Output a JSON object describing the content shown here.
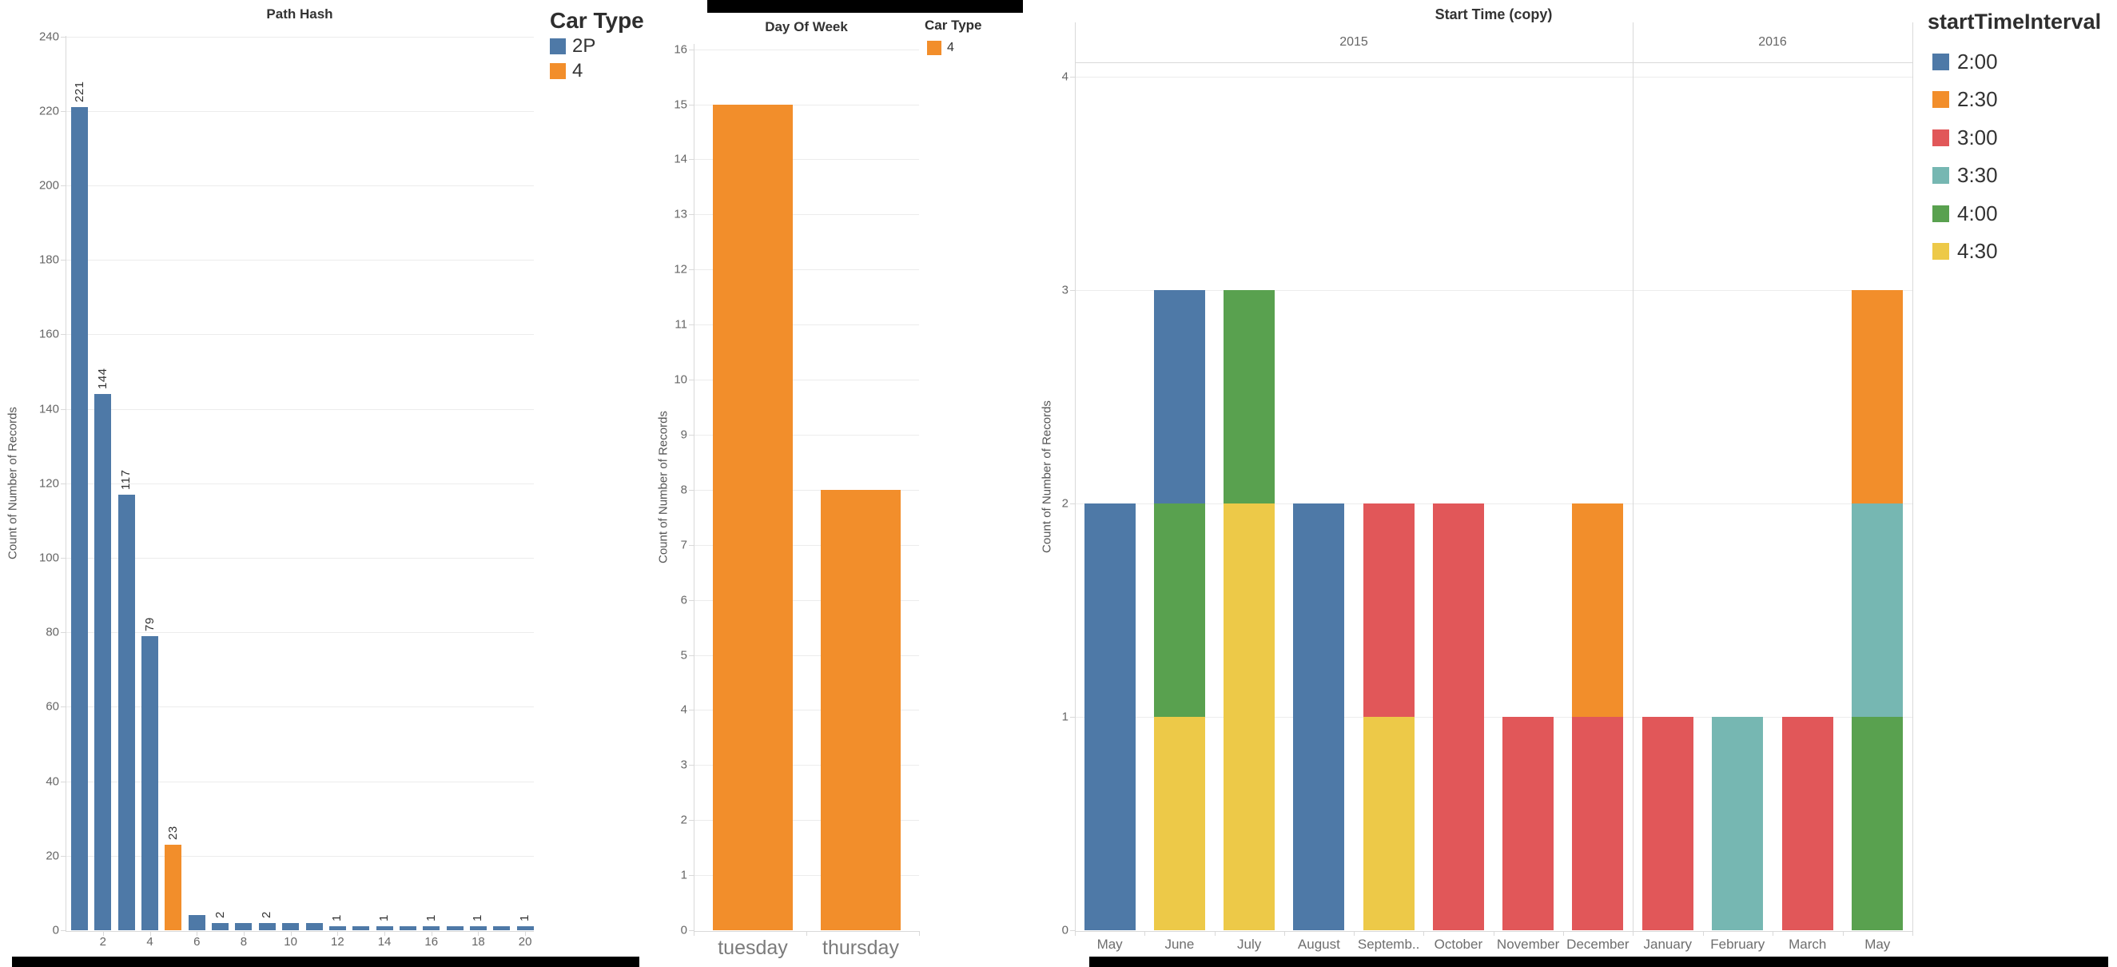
{
  "colors": {
    "blue": "#4e79a7",
    "orange": "#f28e2b",
    "red": "#e15759",
    "teal": "#76b7b2",
    "green": "#59a14f",
    "yellow": "#edc948"
  },
  "chart_data": [
    {
      "id": "path-hash",
      "type": "bar",
      "title": "Path Hash",
      "ylabel": "Count of Number of Records",
      "ylim": [
        0,
        240
      ],
      "yticks": [
        0,
        20,
        40,
        60,
        80,
        100,
        120,
        140,
        160,
        180,
        200,
        220,
        240
      ],
      "x": [
        1,
        2,
        3,
        4,
        5,
        6,
        7,
        8,
        9,
        10,
        11,
        12,
        13,
        14,
        15,
        16,
        17,
        18,
        19,
        20
      ],
      "xticks_shown": [
        2,
        4,
        6,
        8,
        10,
        12,
        14,
        16,
        18,
        20
      ],
      "values": [
        221,
        144,
        117,
        79,
        23,
        4,
        2,
        2,
        2,
        2,
        2,
        1,
        1,
        1,
        1,
        1,
        1,
        1,
        1,
        1
      ],
      "bar_colors": [
        "blue",
        "blue",
        "blue",
        "blue",
        "orange",
        "blue",
        "blue",
        "blue",
        "blue",
        "blue",
        "blue",
        "blue",
        "blue",
        "blue",
        "blue",
        "blue",
        "blue",
        "blue",
        "blue",
        "blue"
      ],
      "bar_labels": [
        "221",
        "144",
        "117",
        "79",
        "23",
        "",
        "2",
        "",
        "2",
        "",
        "",
        "1",
        "",
        "1",
        "",
        "1",
        "",
        "1",
        "",
        "1"
      ],
      "grid": true,
      "legend": {
        "title": "Car Type",
        "items": [
          {
            "label": "2P",
            "color": "blue"
          },
          {
            "label": "4",
            "color": "orange"
          }
        ],
        "position": "right-top"
      }
    },
    {
      "id": "day-of-week",
      "type": "bar",
      "title": "Day Of Week",
      "ylabel": "Count of Number of Records",
      "ylim": [
        0,
        16
      ],
      "yticks": [
        0,
        1,
        2,
        3,
        4,
        5,
        6,
        7,
        8,
        9,
        10,
        11,
        12,
        13,
        14,
        15,
        16
      ],
      "categories": [
        "tuesday",
        "thursday"
      ],
      "values": [
        15,
        8
      ],
      "bar_color": "orange",
      "grid": true,
      "legend": {
        "title": "Car Type",
        "items": [
          {
            "label": "4",
            "color": "orange"
          }
        ],
        "position": "right-top"
      }
    },
    {
      "id": "start-time-copy",
      "type": "stacked-bar",
      "title": "Start Time (copy)",
      "ylabel": "Count of Number of Records",
      "ylim": [
        0,
        4
      ],
      "yticks": [
        0,
        1,
        2,
        3,
        4
      ],
      "groups": [
        {
          "year": "2015",
          "months": [
            "May",
            "June",
            "July",
            "August",
            "Septemb..",
            "October",
            "November",
            "December"
          ]
        },
        {
          "year": "2016",
          "months": [
            "January",
            "February",
            "March",
            "May"
          ]
        }
      ],
      "categories": [
        "May",
        "June",
        "July",
        "August",
        "Septemb..",
        "October",
        "November",
        "December",
        "January",
        "February",
        "March",
        "May"
      ],
      "series": [
        {
          "name": "2:00",
          "color": "blue",
          "values": [
            2,
            1,
            0,
            2,
            0,
            0,
            0,
            0,
            0,
            0,
            0,
            0
          ]
        },
        {
          "name": "2:30",
          "color": "orange",
          "values": [
            0,
            0,
            0,
            0,
            0,
            0,
            0,
            1,
            0,
            0,
            0,
            1
          ]
        },
        {
          "name": "3:00",
          "color": "red",
          "values": [
            0,
            0,
            0,
            0,
            1,
            2,
            1,
            1,
            1,
            0,
            1,
            0
          ]
        },
        {
          "name": "3:30",
          "color": "teal",
          "values": [
            0,
            0,
            0,
            0,
            0,
            0,
            0,
            0,
            0,
            1,
            0,
            1
          ]
        },
        {
          "name": "4:00",
          "color": "green",
          "values": [
            0,
            1,
            1,
            0,
            0,
            0,
            0,
            0,
            0,
            0,
            0,
            1
          ]
        },
        {
          "name": "4:30",
          "color": "yellow",
          "values": [
            0,
            1,
            2,
            0,
            1,
            0,
            0,
            0,
            0,
            0,
            0,
            0
          ]
        }
      ],
      "stack_order": "bottom-to-top is reverse of series order",
      "grid": true,
      "legend": {
        "title": "startTimeInterval",
        "items": [
          {
            "label": "2:00",
            "color": "blue"
          },
          {
            "label": "2:30",
            "color": "orange"
          },
          {
            "label": "3:00",
            "color": "red"
          },
          {
            "label": "3:30",
            "color": "teal"
          },
          {
            "label": "4:00",
            "color": "green"
          },
          {
            "label": "4:30",
            "color": "yellow"
          }
        ],
        "position": "right-top"
      }
    }
  ]
}
